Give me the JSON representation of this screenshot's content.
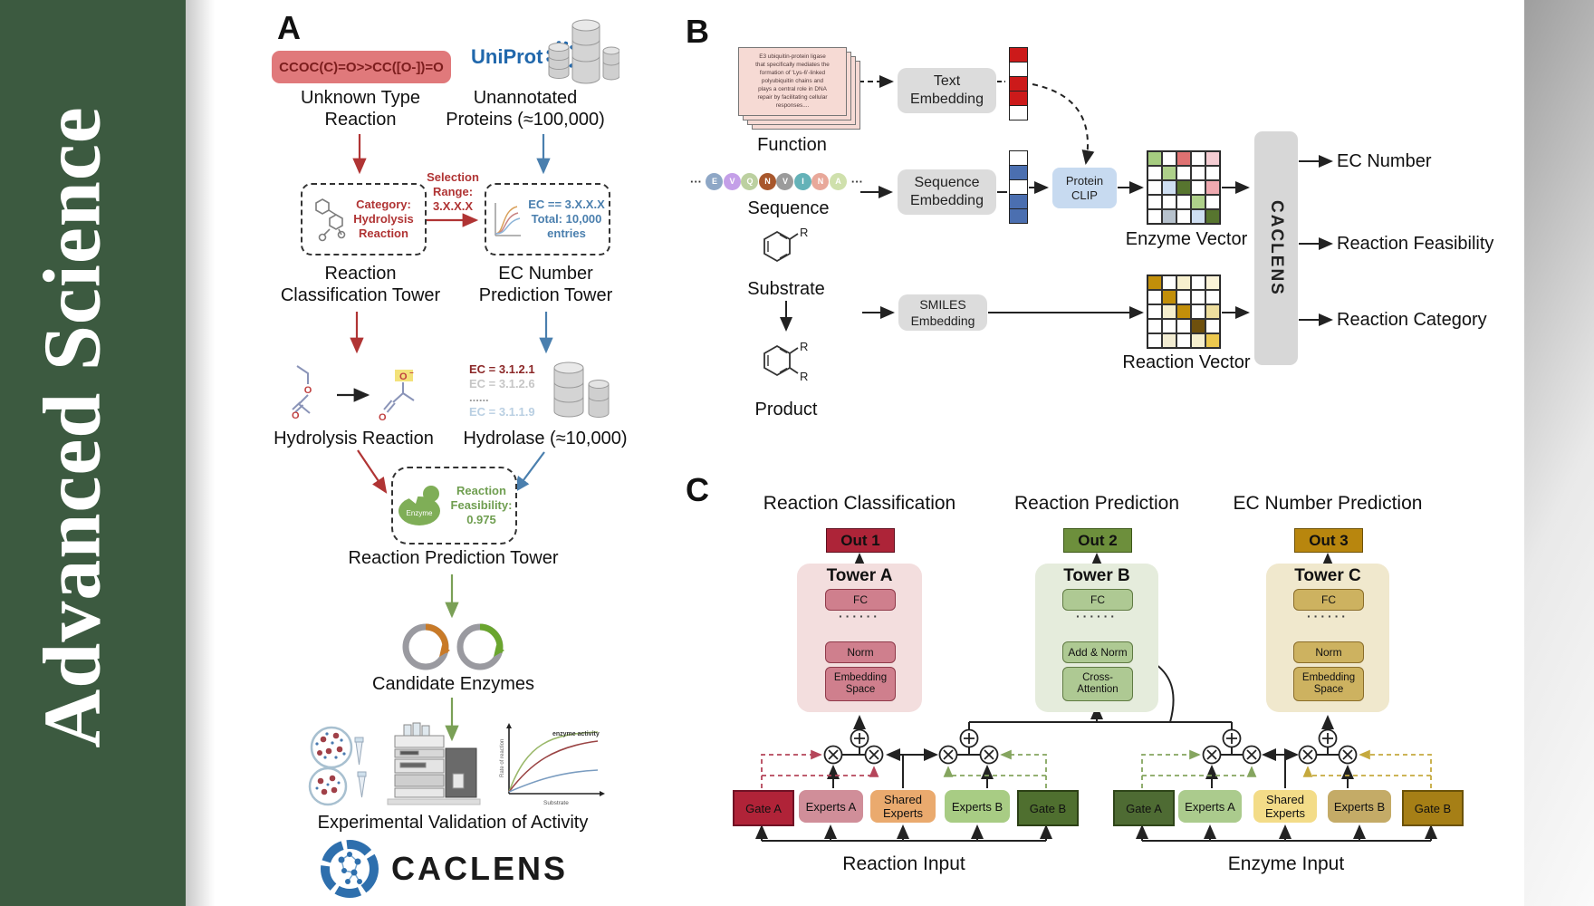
{
  "journal": {
    "title": "Advanced Science"
  },
  "panelA": {
    "label": "A",
    "smiles": "CCOC(C)=O>>CC([O-])=O",
    "unknown_line1": "Unknown Type",
    "unknown_line2": "Reaction",
    "uniprot": "UniProt",
    "unannotated_line1": "Unannotated",
    "unannotated_line2": "Proteins (≈100,000)",
    "category_lines": [
      "Category:",
      "Hydrolysis",
      "Reaction"
    ],
    "selection_lines": [
      "Selection",
      "Range:",
      "3.X.X.X"
    ],
    "ec_box_lines": [
      "EC == 3.X.X.X",
      "Total: 10,000",
      "entries"
    ],
    "tower1_line1": "Reaction",
    "tower1_line2": "Classification Tower",
    "tower2_line1": "EC Number",
    "tower2_line2": "Prediction Tower",
    "hydrolysis_label": "Hydrolysis Reaction",
    "ec_list": [
      {
        "text": "EC = 3.1.2.1",
        "color": "#8b2727"
      },
      {
        "text": "EC = 3.1.2.6",
        "color": "#c6c6c6"
      },
      {
        "text": "......",
        "color": "#9a9a9a"
      },
      {
        "text": "EC = 3.1.1.9",
        "color": "#b9cfe2"
      }
    ],
    "hydrolase_label": "Hydrolase (≈10,000)",
    "enzyme_label": "Enzyme",
    "feasibility_lines": [
      "Reaction",
      "Feasibility:",
      "0.975"
    ],
    "tower3_label": "Reaction Prediction Tower",
    "candidate_label": "Candidate Enzymes",
    "validation_label": "Experimental Validation of Activity",
    "kinetics": {
      "curve_label": "enzyme activity",
      "ylabel": "Rate of reaction",
      "xlabel": "Substrate"
    },
    "logo_text": "CACLENS"
  },
  "panelB": {
    "label": "B",
    "function_card_lines": [
      "E3 ubiquitin-protein ligase",
      "that specifically mediates the",
      "formation of 'Lys-6'-linked",
      "polyubiquitin chains and",
      "plays a central role in DNA",
      "repair by facilitating cellular",
      "responses...."
    ],
    "function_label": "Function",
    "ellipsis": "···",
    "sequence": {
      "letters": [
        "E",
        "V",
        "Q",
        "N",
        "V",
        "I",
        "N",
        "A"
      ],
      "colors": [
        "#8ea7c6",
        "#c49fe8",
        "#bcd0a0",
        "#a8572c",
        "#9b9b9b",
        "#64b2b8",
        "#e8a89a",
        "#cfe0ac"
      ]
    },
    "sequence_label": "Sequence",
    "text_embedding_lines": [
      "Text",
      "Embedding"
    ],
    "sequence_embedding_lines": [
      "Sequence",
      "Embedding"
    ],
    "smiles_embedding_lines": [
      "SMILES",
      "Embedding"
    ],
    "protein_clip_lines": [
      "Protein",
      "CLIP"
    ],
    "text_vector": [
      "#cc1a1a",
      "#ffffff",
      "#cc1a1a",
      "#cc1a1a",
      "#ffffff"
    ],
    "sequence_vector": [
      "#ffffff",
      "#4b6fb0",
      "#ffffff",
      "#4b6fb0",
      "#4b6fb0"
    ],
    "substrate_label": "Substrate",
    "product_label": "Product",
    "r_group": "R",
    "enzyme_vector_label": "Enzyme Vector",
    "reaction_vector_label": "Reaction Vector",
    "enzyme_vector_grid": [
      [
        "#a6cc80",
        "#ffffff",
        "#df7272",
        "#ffffff",
        "#f5cdd3"
      ],
      [
        "#ffffff",
        "#aed08a",
        "#ffffff",
        "#ffffff",
        "#ffffff"
      ],
      [
        "#ffffff",
        "#cfdff2",
        "#57752f",
        "#ffffff",
        "#efa9b0"
      ],
      [
        "#ffffff",
        "#ffffff",
        "#ffffff",
        "#aed08a",
        "#ffffff"
      ],
      [
        "#ffffff",
        "#b7c2cd",
        "#ffffff",
        "#cfdff2",
        "#57752f"
      ]
    ],
    "reaction_vector_grid": [
      [
        "#c28f0a",
        "#ffffff",
        "#f6efcd",
        "#ffffff",
        "#faf3d8"
      ],
      [
        "#ffffff",
        "#c28f0a",
        "#ffffff",
        "#ffffff",
        "#ffffff"
      ],
      [
        "#ffffff",
        "#f6efcd",
        "#c28f0a",
        "#ffffff",
        "#eede9e"
      ],
      [
        "#ffffff",
        "#ffffff",
        "#ffffff",
        "#6e500d",
        "#ffffff"
      ],
      [
        "#ffffff",
        "#f2ecd2",
        "#ffffff",
        "#f6efcd",
        "#ecc84e"
      ]
    ],
    "caclens_label": "CACLENS",
    "outputs": [
      "EC Number",
      "Reaction Feasibility",
      "Reaction Category"
    ]
  },
  "panelC": {
    "label": "C",
    "columns": [
      {
        "title": "Reaction Classification",
        "out": "Out 1",
        "tower": "Tower A",
        "fc": "FC",
        "dots": "······",
        "mid": "Norm",
        "bottom_line1": "Embedding",
        "bottom_line2": "Space"
      },
      {
        "title": "Reaction Prediction",
        "out": "Out 2",
        "tower": "Tower B",
        "fc": "FC",
        "dots": "······",
        "mid": "Add & Norm",
        "bottom_line1": "Cross-",
        "bottom_line2": "Attention"
      },
      {
        "title": "EC Number Prediction",
        "out": "Out 3",
        "tower": "Tower C",
        "fc": "FC",
        "dots": "······",
        "mid": "Norm",
        "bottom_line1": "Embedding",
        "bottom_line2": "Space"
      }
    ],
    "groups": [
      {
        "gate_a": "Gate A",
        "experts_a": "Experts A",
        "shared_line1": "Shared",
        "shared_line2": "Experts",
        "experts_b": "Experts B",
        "gate_b": "Gate B",
        "input_label": "Reaction Input"
      },
      {
        "gate_a": "Gate A",
        "experts_a": "Experts A",
        "shared_line1": "Shared",
        "shared_line2": "Experts",
        "experts_b": "Experts B",
        "gate_b": "Gate B",
        "input_label": "Enzyme Input"
      }
    ]
  },
  "colors": {
    "journal_green": "#3c5a40",
    "red_arrow": "#b03434",
    "blue_arrow": "#4a7fae",
    "green_arrow": "#7aa056",
    "uniprot_blue": "#2168ac"
  }
}
